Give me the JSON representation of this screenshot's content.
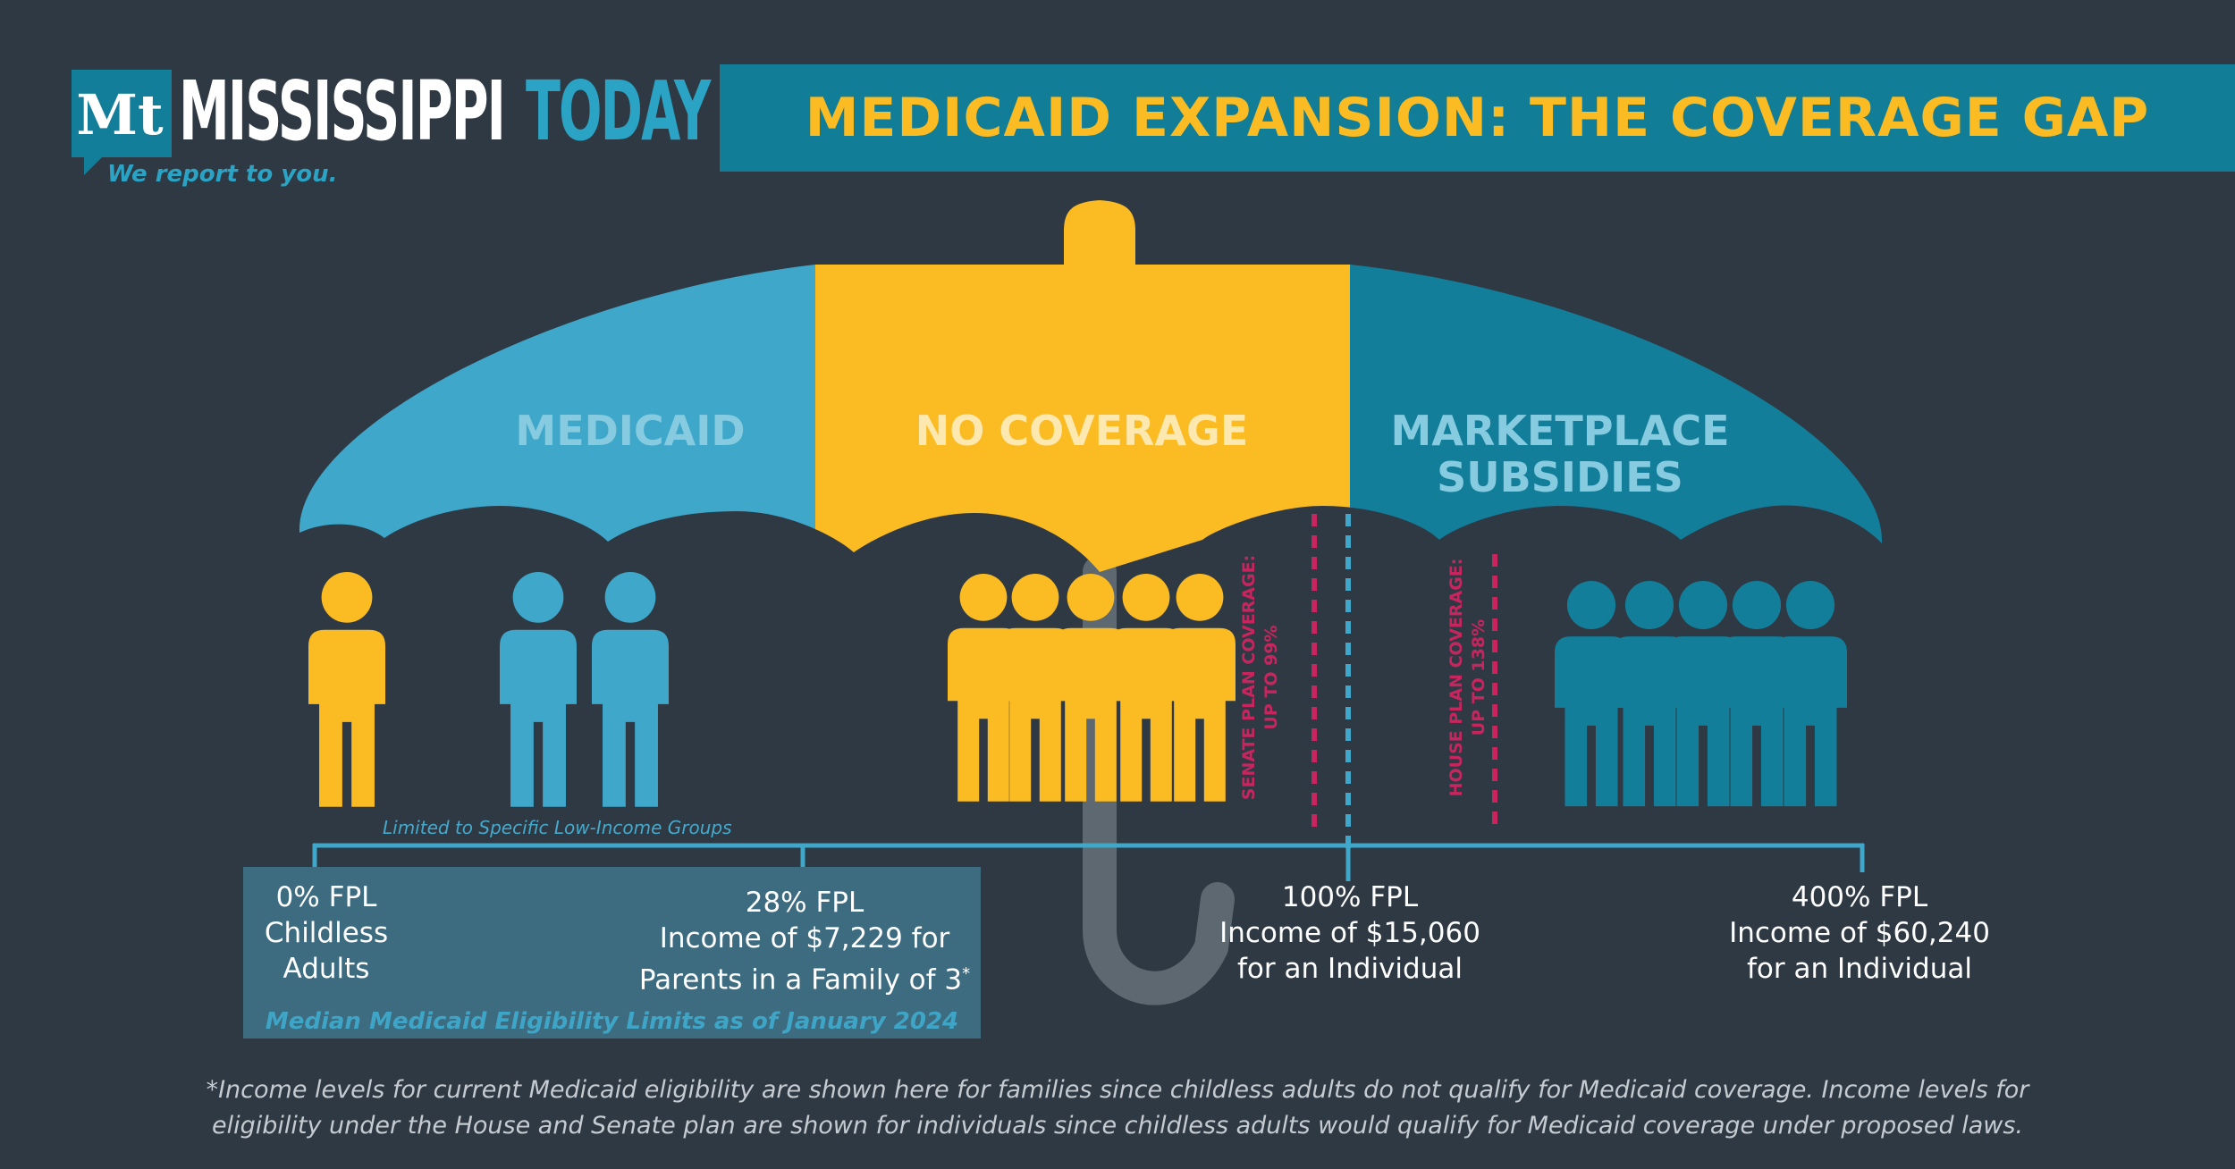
{
  "logo": {
    "monogram": "Mt",
    "word_1": "MISSISSIPPI",
    "word_2": "TODAY",
    "tagline": "We report to you."
  },
  "title": "MEDICAID EXPANSION: THE COVERAGE GAP",
  "sections": {
    "medicaid": "MEDICAID",
    "no_coverage": "NO COVERAGE",
    "marketplace_line_1": "MARKETPLACE",
    "marketplace_line_2": "SUBSIDIES"
  },
  "plan_notes": {
    "senate_line_1": "SENATE PLAN COVERAGE:",
    "senate_line_2": "UP TO 99%",
    "house_line_1": "HOUSE PLAN COVERAGE:",
    "house_line_2": "UP TO 138%"
  },
  "scale": {
    "limited_label": "Limited to Specific Low-Income Groups",
    "median_caption": "Median Medicaid Eligibility Limits as of January 2024",
    "points": [
      {
        "pct": "0% FPL",
        "line_1": "Childless",
        "line_2": "Adults"
      },
      {
        "pct": "28% FPL",
        "line_1": "Income of $7,229 for",
        "line_2": "Parents in a Family of 3",
        "mark": "*"
      },
      {
        "pct": "100% FPL",
        "line_1": "Income of $15,060",
        "line_2": "for an Individual"
      },
      {
        "pct": "400% FPL",
        "line_1": "Income of $60,240",
        "line_2": "for an Individual"
      }
    ]
  },
  "footnote": "*Income levels for current Medicaid eligibility are shown here for families since childless adults do not qualify for Medicaid coverage. Income levels for eligibility under the House and Senate plan are shown for individuals since childless adults would qualify for Medicaid coverage under proposed laws.",
  "colors": {
    "background": "#2f3944",
    "medicaid_blue": "#3fa7c9",
    "gold": "#fbbb22",
    "teal": "#137e99",
    "magenta": "#c8255e",
    "handle_gray": "#5d6871"
  },
  "people_groups": {
    "medicaid_gold": 1,
    "medicaid_blue": 2,
    "no_coverage": 5,
    "marketplace": 5
  }
}
